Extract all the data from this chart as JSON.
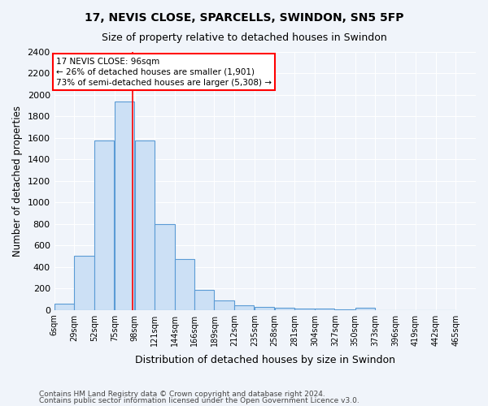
{
  "title1": "17, NEVIS CLOSE, SPARCELLS, SWINDON, SN5 5FP",
  "title2": "Size of property relative to detached houses in Swindon",
  "xlabel": "Distribution of detached houses by size in Swindon",
  "ylabel": "Number of detached properties",
  "footnote1": "Contains HM Land Registry data © Crown copyright and database right 2024.",
  "footnote2": "Contains public sector information licensed under the Open Government Licence v3.0.",
  "annotation_line1": "17 NEVIS CLOSE: 96sqm",
  "annotation_line2": "← 26% of detached houses are smaller (1,901)",
  "annotation_line3": "73% of semi-detached houses are larger (5,308) →",
  "bar_color": "#cce0f5",
  "bar_edge_color": "#5b9bd5",
  "vertical_line_x": 96,
  "vertical_line_color": "red",
  "categories": [
    "6sqm",
    "29sqm",
    "52sqm",
    "75sqm",
    "98sqm",
    "121sqm",
    "144sqm",
    "166sqm",
    "189sqm",
    "212sqm",
    "235sqm",
    "258sqm",
    "281sqm",
    "304sqm",
    "327sqm",
    "350sqm",
    "373sqm",
    "396sqm",
    "419sqm",
    "442sqm",
    "465sqm"
  ],
  "bin_edges": [
    6,
    29,
    52,
    75,
    98,
    121,
    144,
    166,
    189,
    212,
    235,
    258,
    281,
    304,
    327,
    350,
    373,
    396,
    419,
    442,
    465
  ],
  "values": [
    60,
    500,
    1580,
    1940,
    1580,
    800,
    475,
    190,
    90,
    40,
    30,
    20,
    15,
    10,
    5,
    20,
    0,
    0,
    0,
    0
  ],
  "ylim": [
    0,
    2400
  ],
  "yticks": [
    0,
    200,
    400,
    600,
    800,
    1000,
    1200,
    1400,
    1600,
    1800,
    2000,
    2200,
    2400
  ],
  "bg_color": "#f0f4fa",
  "grid_color": "#ffffff"
}
